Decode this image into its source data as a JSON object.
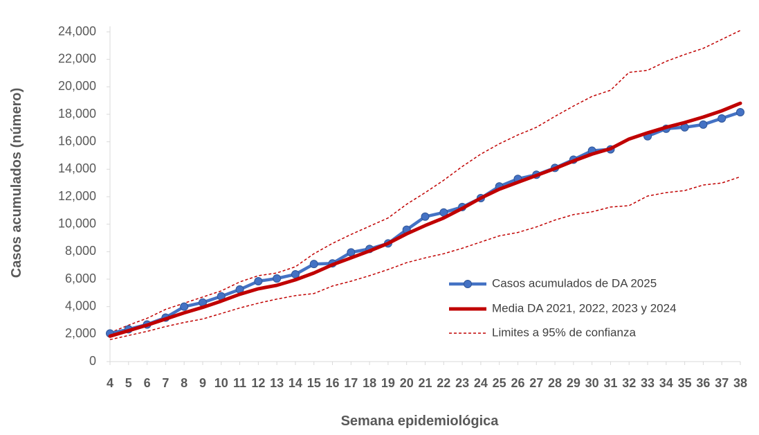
{
  "chart_data": {
    "type": "line",
    "title": "",
    "xlabel": "Semana epidemiológica",
    "ylabel": "Casos acumulados (número)",
    "x": [
      4,
      5,
      6,
      7,
      8,
      9,
      10,
      11,
      12,
      13,
      14,
      15,
      16,
      17,
      18,
      19,
      20,
      21,
      22,
      23,
      24,
      25,
      26,
      27,
      28,
      29,
      30,
      31,
      32,
      33,
      34,
      35,
      36,
      37,
      38
    ],
    "ylim": [
      0,
      24000
    ],
    "yticks": [
      0,
      2000,
      4000,
      6000,
      8000,
      10000,
      12000,
      14000,
      16000,
      18000,
      20000,
      22000,
      24000
    ],
    "ytick_labels": [
      "0",
      "2,000",
      "4,000",
      "6,000",
      "8,000",
      "10,000",
      "12,000",
      "14,000",
      "16,000",
      "18,000",
      "20,000",
      "22,000",
      "24,000"
    ],
    "grid": false,
    "legend_position": "bottom-right",
    "series": [
      {
        "name": "Casos acumulados de DA 2025",
        "color": "#4472C4",
        "style": "line-markers",
        "values": [
          2050,
          2350,
          2700,
          3200,
          4000,
          4300,
          4750,
          5250,
          5850,
          6050,
          6350,
          7100,
          7150,
          7950,
          8200,
          8600,
          9600,
          10550,
          10850,
          11250,
          11900,
          12750,
          13300,
          13600,
          14100,
          14700,
          15350,
          15450,
          null,
          16400,
          16950,
          17050,
          17250,
          17700,
          18150
        ]
      },
      {
        "name": "Media DA 2021, 2022, 2023 y 2024",
        "color": "#C00000",
        "style": "thick-line",
        "values": [
          1850,
          2250,
          2650,
          3100,
          3550,
          3950,
          4400,
          4900,
          5300,
          5550,
          5950,
          6450,
          7050,
          7550,
          8050,
          8600,
          9300,
          9900,
          10450,
          11150,
          11900,
          12550,
          13050,
          13550,
          14050,
          14600,
          15100,
          15500,
          16200,
          16650,
          17050,
          17400,
          17800,
          18250,
          18800
        ]
      },
      {
        "name": "Limites a 95% de confianza",
        "color": "#C00000",
        "style": "dashed",
        "values": [
          2100,
          2650,
          3150,
          3800,
          4250,
          4700,
          5150,
          5800,
          6250,
          6450,
          6900,
          7850,
          8600,
          9250,
          9850,
          10450,
          11450,
          12300,
          13200,
          14200,
          15100,
          15850,
          16500,
          17050,
          17850,
          18600,
          19300,
          19750,
          21050,
          21200,
          21850,
          22350,
          22800,
          23450,
          24100
        ]
      },
      {
        "name": "",
        "color": "#C00000",
        "style": "dashed",
        "values": [
          1600,
          1900,
          2200,
          2550,
          2850,
          3100,
          3500,
          3900,
          4250,
          4550,
          4800,
          4950,
          5500,
          5850,
          6250,
          6700,
          7200,
          7550,
          7850,
          8250,
          8700,
          9150,
          9400,
          9800,
          10300,
          10700,
          10900,
          11250,
          11350,
          12050,
          12300,
          12450,
          12850,
          13000,
          13450
        ]
      }
    ]
  }
}
